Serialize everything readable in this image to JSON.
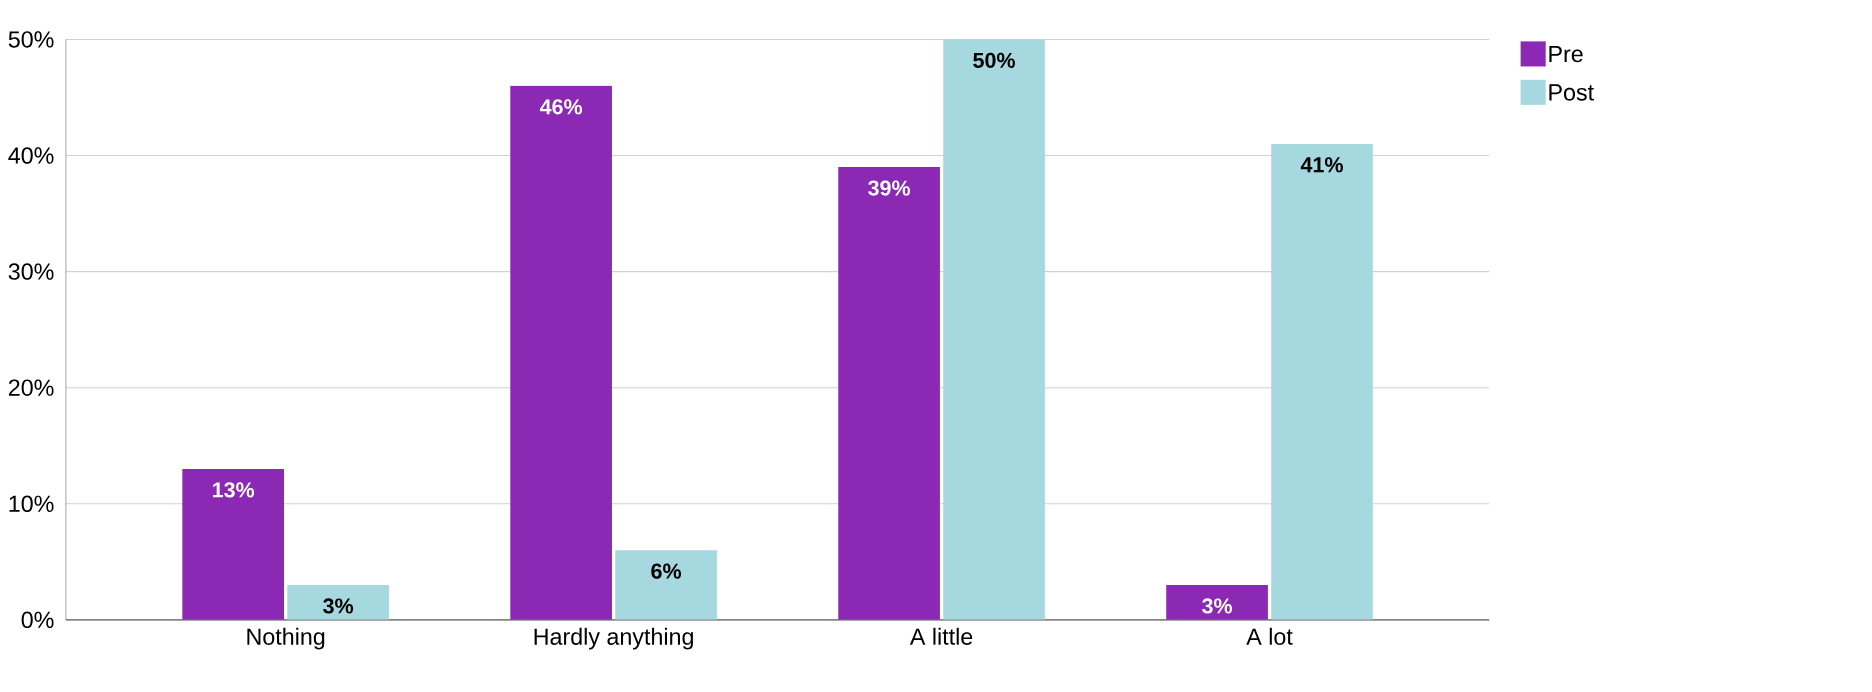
{
  "chart_data": {
    "type": "bar",
    "categories": [
      "Nothing",
      "Hardly anything",
      "A little",
      "A lot"
    ],
    "series": [
      {
        "name": "Pre",
        "color": "#8b29b5",
        "values": [
          13,
          46,
          39,
          3
        ],
        "value_labels": [
          "13%",
          "46%",
          "39%",
          "3%"
        ]
      },
      {
        "name": "Post",
        "color": "#a6d8e0",
        "values": [
          3,
          6,
          50,
          41
        ],
        "value_labels": [
          "3%",
          "6%",
          "50%",
          "41%"
        ]
      }
    ],
    "ylim": [
      0,
      50
    ],
    "yticks": [
      {
        "value": 0,
        "label": "0%"
      },
      {
        "value": 10,
        "label": "10%"
      },
      {
        "value": 20,
        "label": "20%"
      },
      {
        "value": 30,
        "label": "30%"
      },
      {
        "value": 40,
        "label": "40%"
      },
      {
        "value": 50,
        "label": "50%"
      }
    ],
    "grid": "y",
    "legend": "top right"
  }
}
